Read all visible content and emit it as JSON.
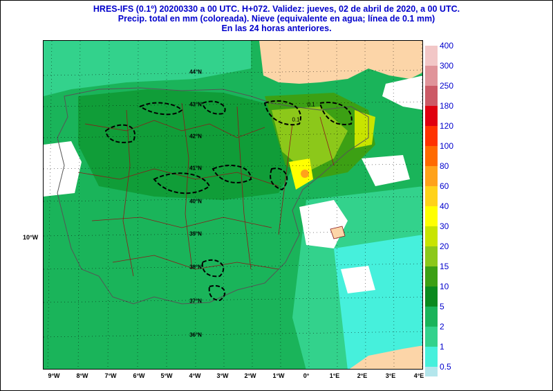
{
  "header": {
    "line1": "HRES-IFS (0.1º) 20200330 a 00 UTC.  H+072. Validez: jueves, 02 de abril de 2020,  a  00 UTC.",
    "line2": "Precip. total en mm (coloreada). Nieve (equivalente en agua; línea de 0.1 mm)",
    "line3": "En las 24 horas anteriores."
  },
  "map": {
    "longitude_labels": [
      "9°W",
      "8°W",
      "7°W",
      "6°W",
      "5°W",
      "4°W",
      "3°W",
      "2°W",
      "1°W",
      "0°",
      "1°E",
      "2°E",
      "3°E",
      "4°E"
    ],
    "latitude_labels": [
      "44°N",
      "43°N",
      "42°N",
      "41°N",
      "40°N",
      "39°N",
      "38°N",
      "37°N",
      "36°N"
    ],
    "meridian_label": "10°W",
    "contour_labels": [
      "0.1",
      "0.1"
    ],
    "snow_line_label": "0.1 mm",
    "colors": {
      "land_dry": "#fcd5a8",
      "sea": "#ffffff",
      "border": "#8b1a1a"
    }
  },
  "legend": {
    "levels": [
      {
        "label": "400",
        "color": "#f2c7c7"
      },
      {
        "label": "300",
        "color": "#e0949a"
      },
      {
        "label": "250",
        "color": "#cc5a66"
      },
      {
        "label": "180",
        "color": "#e0000f"
      },
      {
        "label": "120",
        "color": "#ff3300"
      },
      {
        "label": "100",
        "color": "#ff6a00"
      },
      {
        "label": "80",
        "color": "#ffa21a"
      },
      {
        "label": "60",
        "color": "#ffd21a"
      },
      {
        "label": "40",
        "color": "#ffff00"
      },
      {
        "label": "30",
        "color": "#c8e400"
      },
      {
        "label": "20",
        "color": "#8cc81a"
      },
      {
        "label": "15",
        "color": "#3ca014"
      },
      {
        "label": "10",
        "color": "#0a8a1e"
      },
      {
        "label": "5",
        "color": "#1ab45a"
      },
      {
        "label": "2",
        "color": "#33d28c"
      },
      {
        "label": "1",
        "color": "#46f0dc"
      },
      {
        "label": "0.5",
        "color": "#b4e6ec"
      }
    ]
  }
}
